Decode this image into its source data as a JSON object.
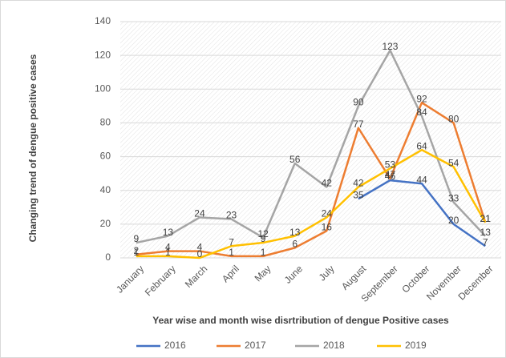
{
  "chart_data": {
    "type": "line",
    "x_label": "Year wise and month wise disrtribution of dengue Positive cases",
    "y_label": "Changing trend of dengue  positive cases",
    "categories": [
      "January",
      "February",
      "March",
      "April",
      "May",
      "June",
      "July",
      "August",
      "September",
      "October",
      "November",
      "December"
    ],
    "series": [
      {
        "name": "2016",
        "color": "#4472c4",
        "values": [
          null,
          null,
          null,
          null,
          null,
          null,
          null,
          35,
          46,
          44,
          20,
          7
        ]
      },
      {
        "name": "2017",
        "color": "#ed7d31",
        "values": [
          2,
          4,
          4,
          1,
          1,
          6,
          16,
          77,
          47,
          92,
          80,
          21
        ]
      },
      {
        "name": "2018",
        "color": "#a5a5a5",
        "values": [
          9,
          13,
          24,
          23,
          12,
          56,
          42,
          90,
          123,
          84,
          33,
          13
        ]
      },
      {
        "name": "2019",
        "color": "#ffc000",
        "values": [
          1,
          1,
          0,
          7,
          9,
          13,
          24,
          42,
          53,
          64,
          54,
          21
        ]
      }
    ],
    "ylim": [
      0,
      140
    ],
    "yticks": [
      0,
      20,
      40,
      60,
      80,
      100,
      120,
      140
    ],
    "grid": true,
    "legend": "bottom"
  }
}
